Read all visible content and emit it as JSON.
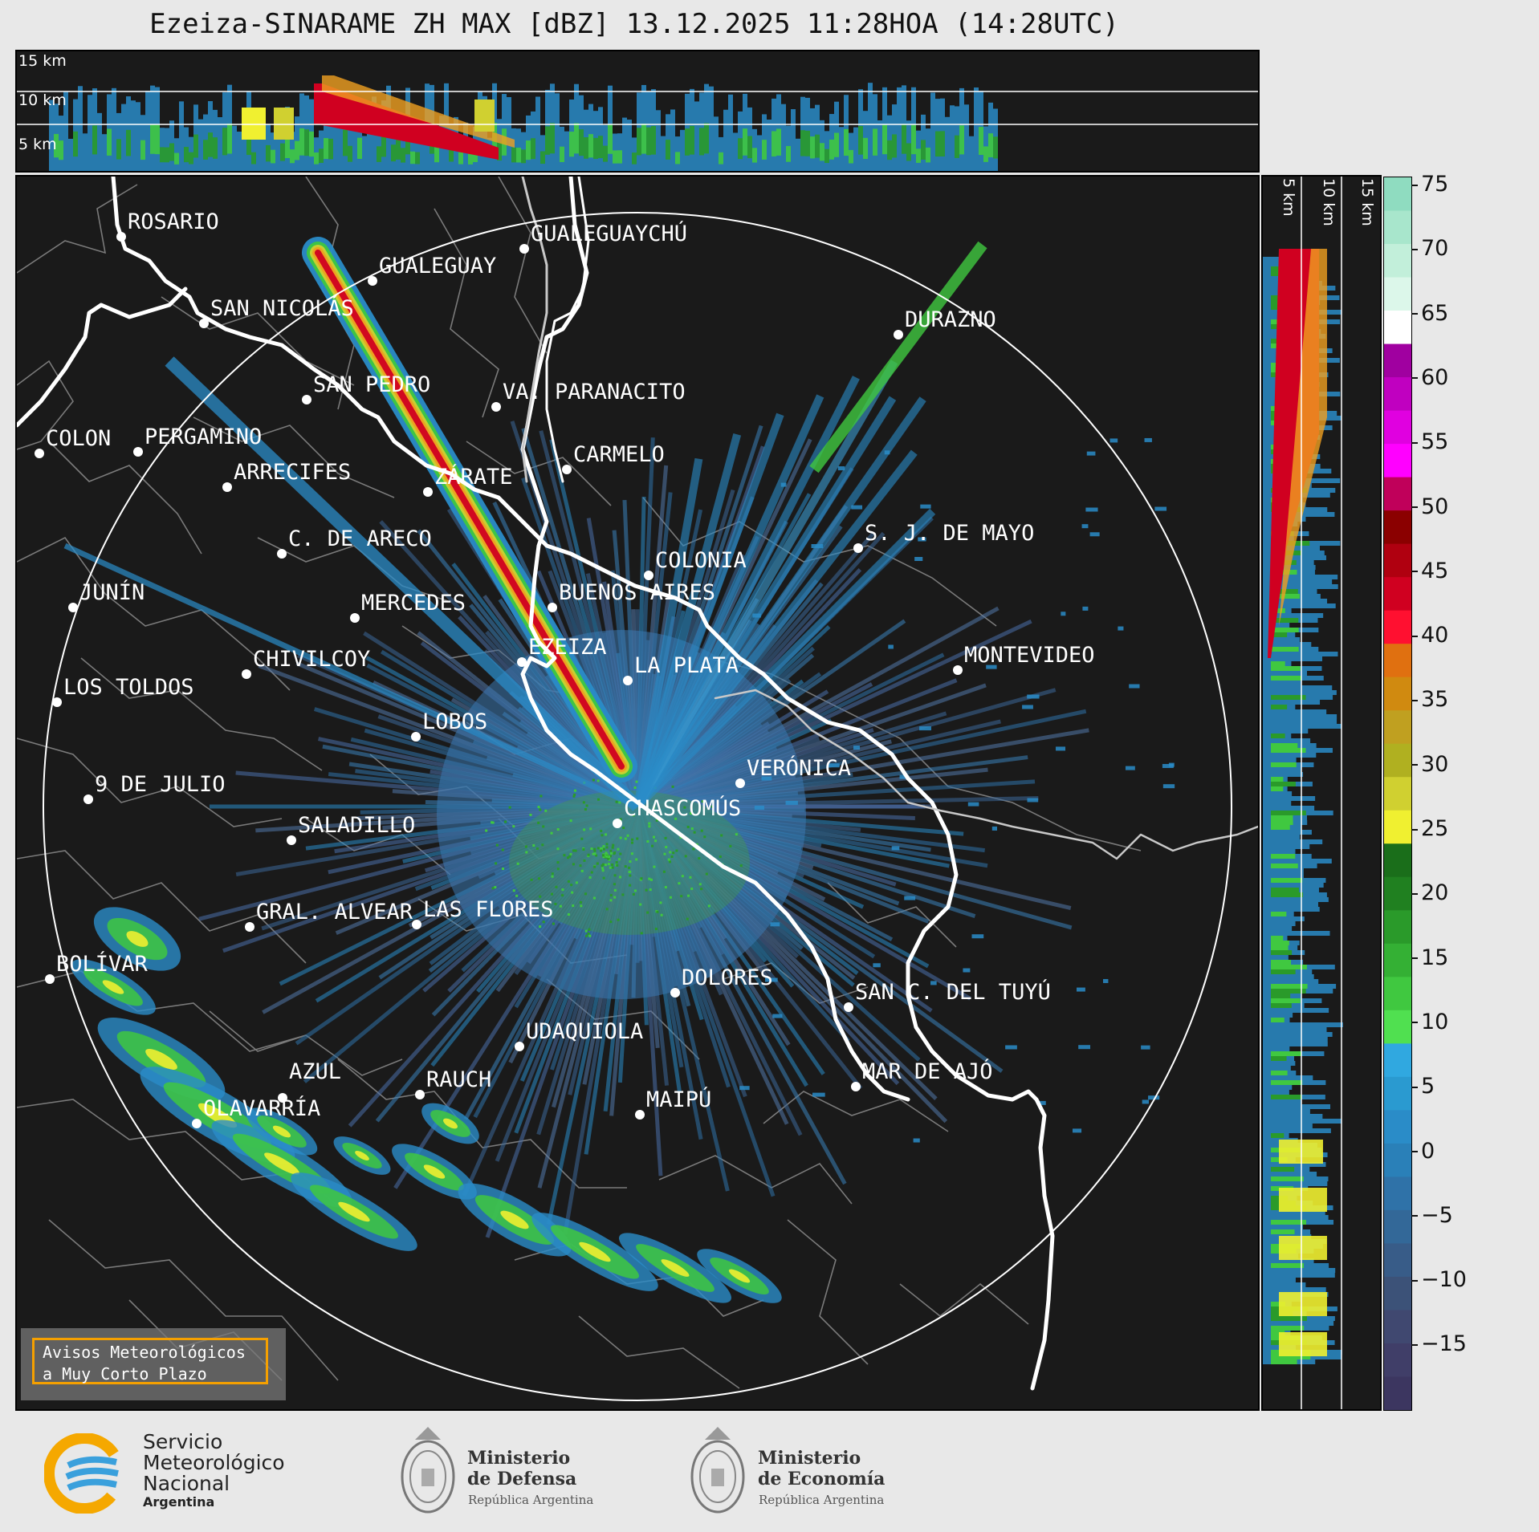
{
  "title": "Ezeiza-SINARAME ZH MAX [dBZ] 13.12.2025 11:28HOA (14:28UTC)",
  "top_panel": {
    "labels": [
      "15 km",
      "10 km",
      "5 km"
    ]
  },
  "right_panel": {
    "labels": [
      "5 km",
      "10 km",
      "15 km"
    ]
  },
  "colorbar": {
    "ticks": [
      "75",
      "70",
      "65",
      "60",
      "55",
      "50",
      "45",
      "40",
      "35",
      "30",
      "25",
      "20",
      "15",
      "10",
      "5",
      "0",
      "−5",
      "−10",
      "−15"
    ],
    "colors": [
      "#8fdcc0",
      "#a8e6cc",
      "#c2efda",
      "#dcf7ea",
      "#ffffff",
      "#a000a0",
      "#c000c0",
      "#e000e0",
      "#ff00ff",
      "#c0005a",
      "#8b0000",
      "#b00010",
      "#d00020",
      "#ff1030",
      "#e07010",
      "#d08a10",
      "#c0a020",
      "#b0b020",
      "#d0d030",
      "#f0f030",
      "#1a6e1a",
      "#208020",
      "#2a9a2a",
      "#34b034",
      "#40c840",
      "#50e050",
      "#30a8e0",
      "#2a9ad0",
      "#2a8cc8",
      "#2a80b8",
      "#2f72a8",
      "#336898",
      "#385c88",
      "#3c5278",
      "#404870",
      "#403e68",
      "#3c3660"
    ]
  },
  "cities": [
    "ROSARIO",
    "GUALEGUAYCHÚ",
    "GUALEGUAY",
    "SAN NICOLÁS",
    "DURAZNO",
    "SAN PEDRO",
    "VA. PARANACITO",
    "COLON",
    "PERGAMINO",
    "CARMELO",
    "ARRECIFES",
    "ZÁRATE",
    "S. J. DE MAYO",
    "C. DE ARECO",
    "COLONIA",
    "JUNÍN",
    "BUENOS AIRES",
    "MERCEDES",
    "MONTEVIDEO",
    "EZEIZA",
    "CHIVILCOY",
    "LA PLATA",
    "LOS TOLDOS",
    "LOBOS",
    "VERÓNICA",
    "9 DE JULIO",
    "CHASCOMÚS",
    "SALADILLO",
    "GRAL. ALVEAR",
    "LAS FLORES",
    "BOLÍVAR",
    "DOLORES",
    "SAN C. DEL TUYÚ",
    "UDAQUIOLA",
    "AZUL",
    "RAUCH",
    "MAR DE AJÓ",
    "OLAVARRÍA",
    "MAIPÚ"
  ],
  "aviso": {
    "line1": "Avisos Meteorológicos",
    "line2": "a Muy Corto Plazo"
  },
  "footer": {
    "smn": {
      "line1": "Servicio",
      "line2": "Meteorológico",
      "line3": "Nacional",
      "line4": "Argentina"
    },
    "defensa": {
      "line1": "Ministerio",
      "line2": "de Defensa",
      "sub": "República Argentina"
    },
    "economia": {
      "line1": "Ministerio",
      "line2": "de Economía",
      "sub": "República Argentina"
    }
  },
  "colors": {
    "background": "#1a1a1a",
    "coast": "#ffffff",
    "borders": "#808080",
    "aviso_border": "#f5a000"
  }
}
